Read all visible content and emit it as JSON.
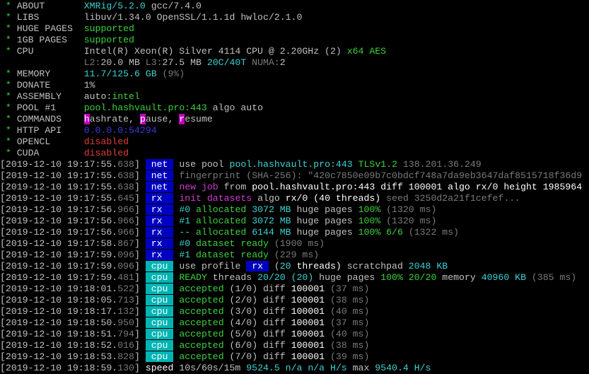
{
  "colors": {
    "background": "#000000",
    "tag_net_rx": "#0000c0",
    "tag_cpu": "#00b4b4",
    "command_key": "#c000c0"
  },
  "header": [
    {
      "label": "ABOUT",
      "segments": [
        [
          "XMRig/5.2.0",
          "c"
        ],
        [
          " gcc/7.4.0",
          "w"
        ]
      ]
    },
    {
      "label": "LIBS",
      "segments": [
        [
          "libuv/1.34.0 OpenSSL/1.1.1d hwloc/2.1.0",
          "w"
        ]
      ]
    },
    {
      "label": "HUGE PAGES",
      "segments": [
        [
          "supported",
          "g"
        ]
      ]
    },
    {
      "label": "1GB PAGES",
      "segments": [
        [
          "supported",
          "g"
        ]
      ]
    },
    {
      "label": "CPU",
      "segments": [
        [
          "Intel(R) Xeon(R) Silver 4114 CPU @ 2.20GHz (2) ",
          "w"
        ],
        [
          "x64 AES",
          "g"
        ]
      ]
    },
    {
      "label": "",
      "segments": [
        [
          "L2:",
          "d"
        ],
        [
          "20.0 MB ",
          "w"
        ],
        [
          "L3:",
          "d"
        ],
        [
          "27.5 MB ",
          "w"
        ],
        [
          "20C/40T ",
          "c"
        ],
        [
          "NUMA:",
          "d"
        ],
        [
          "2",
          "w"
        ]
      ]
    },
    {
      "label": "MEMORY",
      "segments": [
        [
          "11.7/125.6 GB ",
          "c"
        ],
        [
          "(9%)",
          "d"
        ]
      ]
    },
    {
      "label": "DONATE",
      "segments": [
        [
          "1%",
          "w"
        ]
      ]
    },
    {
      "label": "ASSEMBLY",
      "segments": [
        [
          "auto:",
          "w"
        ],
        [
          "intel",
          "g"
        ]
      ]
    },
    {
      "label": "POOL #1",
      "segments": [
        [
          "pool.hashvault.pro:443",
          "g"
        ],
        [
          " algo auto",
          "w"
        ]
      ]
    },
    {
      "label": "COMMANDS",
      "segments": [
        [
          "h",
          "bgm"
        ],
        [
          "ashrate, ",
          "w"
        ],
        [
          "p",
          "bgm"
        ],
        [
          "ause, ",
          "w"
        ],
        [
          "r",
          "bgm"
        ],
        [
          "esume",
          "w"
        ]
      ]
    },
    {
      "label": "HTTP API",
      "segments": [
        [
          "0.0.0.0:54294",
          "b"
        ]
      ]
    },
    {
      "label": "OPENCL",
      "segments": [
        [
          "disabled",
          "r"
        ]
      ]
    },
    {
      "label": "CUDA",
      "segments": [
        [
          "disabled",
          "r"
        ]
      ]
    }
  ],
  "log": [
    {
      "ts": "2019-12-10 19:17:55.",
      "ms": "638",
      "tag": "net",
      "segments": [
        [
          "use pool ",
          "w"
        ],
        [
          "pool.hashvault.pro:443 ",
          "c"
        ],
        [
          "TLSv1.2 ",
          "g"
        ],
        [
          "138.201.36.249",
          "d"
        ]
      ]
    },
    {
      "ts": "2019-12-10 19:17:55.",
      "ms": "638",
      "tag": "net",
      "segments": [
        [
          "fingerprint (SHA-256): \"420c7850e09b7c0bdcf748a7da9eb3647daf8515718f36d9",
          "d"
        ]
      ]
    },
    {
      "ts": "2019-12-10 19:17:55.",
      "ms": "638",
      "tag": "net",
      "segments": [
        [
          "new job",
          "m"
        ],
        [
          " from ",
          "w"
        ],
        [
          "pool.hashvault.pro:443 diff 100001 algo rx/0 height 1985964",
          "W"
        ]
      ]
    },
    {
      "ts": "2019-12-10 19:17:55.",
      "ms": "645",
      "tag": "rx",
      "segments": [
        [
          "init datasets",
          "m"
        ],
        [
          " algo ",
          "w"
        ],
        [
          "rx/0 (40 threads)",
          "W"
        ],
        [
          " seed 3250d2a21f1cefef...",
          "d"
        ]
      ]
    },
    {
      "ts": "2019-12-10 19:17:56.",
      "ms": "966",
      "tag": "rx",
      "segments": [
        [
          "#0",
          "c"
        ],
        [
          " allocated ",
          "g"
        ],
        [
          "3072 MB",
          "c"
        ],
        [
          " huge pages ",
          "w"
        ],
        [
          "100%",
          "g"
        ],
        [
          " (1320 ms)",
          "d"
        ]
      ]
    },
    {
      "ts": "2019-12-10 19:17:56.",
      "ms": "966",
      "tag": "rx",
      "segments": [
        [
          "#1",
          "c"
        ],
        [
          " allocated ",
          "g"
        ],
        [
          "3072 MB",
          "c"
        ],
        [
          " huge pages ",
          "w"
        ],
        [
          "100%",
          "g"
        ],
        [
          " (1320 ms)",
          "d"
        ]
      ]
    },
    {
      "ts": "2019-12-10 19:17:56.",
      "ms": "966",
      "tag": "rx",
      "segments": [
        [
          "--",
          "c"
        ],
        [
          " allocated ",
          "g"
        ],
        [
          "6144 MB",
          "c"
        ],
        [
          " huge pages ",
          "w"
        ],
        [
          "100% 6/6",
          "g"
        ],
        [
          " (1322 ms)",
          "d"
        ]
      ]
    },
    {
      "ts": "2019-12-10 19:17:58.",
      "ms": "867",
      "tag": "rx",
      "segments": [
        [
          "#0",
          "c"
        ],
        [
          " dataset ready",
          "g"
        ],
        [
          " (1900 ms)",
          "d"
        ]
      ]
    },
    {
      "ts": "2019-12-10 19:17:59.",
      "ms": "096",
      "tag": "rx",
      "segments": [
        [
          "#1",
          "c"
        ],
        [
          " dataset ready",
          "g"
        ],
        [
          " (229 ms)",
          "d"
        ]
      ]
    },
    {
      "ts": "2019-12-10 19:17:59.",
      "ms": "096",
      "tag": "cpu",
      "segments": [
        [
          "use profile ",
          "w"
        ],
        [
          " rx ",
          "bgb"
        ],
        [
          " (",
          "w"
        ],
        [
          "20",
          "c"
        ],
        [
          " threads)",
          "W"
        ],
        [
          " scratchpad ",
          "w"
        ],
        [
          "2048 KB",
          "c"
        ]
      ]
    },
    {
      "ts": "2019-12-10 19:17:59.",
      "ms": "481",
      "tag": "cpu",
      "segments": [
        [
          "READY",
          "g"
        ],
        [
          " threads ",
          "w"
        ],
        [
          "20/20 (20)",
          "c"
        ],
        [
          " huge pages ",
          "w"
        ],
        [
          "100% 20/20",
          "g"
        ],
        [
          " memory ",
          "w"
        ],
        [
          "40960 KB",
          "c"
        ],
        [
          " (385 ms)",
          "d"
        ]
      ]
    },
    {
      "ts": "2019-12-10 19:18:01.",
      "ms": "522",
      "tag": "cpu",
      "segments": [
        [
          "accepted",
          "g"
        ],
        [
          " (1/0) diff ",
          "w"
        ],
        [
          "100001",
          "W"
        ],
        [
          " (37 ms)",
          "d"
        ]
      ]
    },
    {
      "ts": "2019-12-10 19:18:05.",
      "ms": "713",
      "tag": "cpu",
      "segments": [
        [
          "accepted",
          "g"
        ],
        [
          " (2/0) diff ",
          "w"
        ],
        [
          "100001",
          "W"
        ],
        [
          " (38 ms)",
          "d"
        ]
      ]
    },
    {
      "ts": "2019-12-10 19:18:17.",
      "ms": "132",
      "tag": "cpu",
      "segments": [
        [
          "accepted",
          "g"
        ],
        [
          " (3/0) diff ",
          "w"
        ],
        [
          "100001",
          "W"
        ],
        [
          " (40 ms)",
          "d"
        ]
      ]
    },
    {
      "ts": "2019-12-10 19:18:50.",
      "ms": "950",
      "tag": "cpu",
      "segments": [
        [
          "accepted",
          "g"
        ],
        [
          " (4/0) diff ",
          "w"
        ],
        [
          "100001",
          "W"
        ],
        [
          " (37 ms)",
          "d"
        ]
      ]
    },
    {
      "ts": "2019-12-10 19:18:51.",
      "ms": "794",
      "tag": "cpu",
      "segments": [
        [
          "accepted",
          "g"
        ],
        [
          " (5/0) diff ",
          "w"
        ],
        [
          "100001",
          "W"
        ],
        [
          " (40 ms)",
          "d"
        ]
      ]
    },
    {
      "ts": "2019-12-10 19:18:52.",
      "ms": "016",
      "tag": "cpu",
      "segments": [
        [
          "accepted",
          "g"
        ],
        [
          " (6/0) diff ",
          "w"
        ],
        [
          "100001",
          "W"
        ],
        [
          " (38 ms)",
          "d"
        ]
      ]
    },
    {
      "ts": "2019-12-10 19:18:53.",
      "ms": "828",
      "tag": "cpu",
      "segments": [
        [
          "accepted",
          "g"
        ],
        [
          " (7/0) diff ",
          "w"
        ],
        [
          "100001",
          "W"
        ],
        [
          " (39 ms)",
          "d"
        ]
      ]
    },
    {
      "ts": "2019-12-10 19:18:59.",
      "ms": "130",
      "tag": "",
      "segments": [
        [
          "speed",
          "W"
        ],
        [
          " 10s/60s/15m ",
          "w"
        ],
        [
          "9524.5",
          "c"
        ],
        [
          " n/a n/a H/s",
          "c"
        ],
        [
          " max ",
          "w"
        ],
        [
          "9540.4 H/s",
          "c"
        ]
      ]
    }
  ]
}
